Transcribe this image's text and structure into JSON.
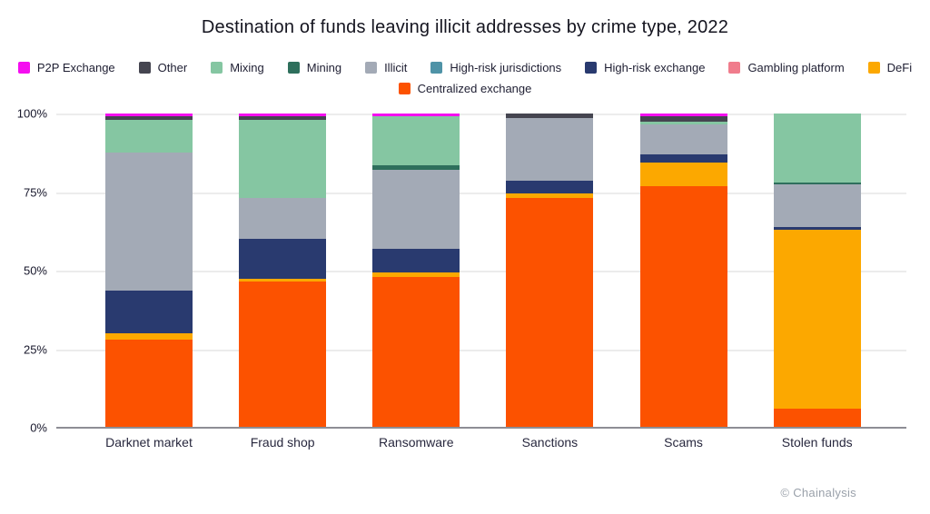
{
  "title": "Destination of funds leaving illicit addresses by crime type, 2022",
  "watermark": "© Chainalysis",
  "chart_data": {
    "type": "bar",
    "stacked": true,
    "units": "percent",
    "title": "Destination of funds leaving illicit addresses by crime type, 2022",
    "xlabel": "",
    "ylabel": "",
    "ylim": [
      0,
      100
    ],
    "yticks": [
      0,
      25,
      50,
      75,
      100
    ],
    "ytick_suffix": "%",
    "grid": true,
    "legend_position": "top",
    "legend_wrap": 9,
    "categories": [
      "Darknet market",
      "Fraud shop",
      "Ransomware",
      "Sanctions",
      "Scams",
      "Stolen funds"
    ],
    "series": [
      {
        "name": "P2P Exchange",
        "color": "#f50ef0",
        "values": [
          1,
          1,
          1,
          0,
          1,
          0
        ]
      },
      {
        "name": "Other",
        "color": "#454550",
        "values": [
          1,
          1,
          0,
          1.5,
          1.5,
          0
        ]
      },
      {
        "name": "Mixing",
        "color": "#85c6a2",
        "values": [
          10.5,
          25,
          15.5,
          0,
          1,
          22
        ]
      },
      {
        "name": "Mining",
        "color": "#2e6f5c",
        "values": [
          0,
          0,
          1.5,
          0,
          0,
          0.5
        ]
      },
      {
        "name": "Illicit",
        "color": "#a3aab6",
        "values": [
          44,
          13,
          25,
          20,
          9.5,
          13.5
        ]
      },
      {
        "name": "High-risk jurisdictions",
        "color": "#4f93a7",
        "values": [
          0,
          0,
          0,
          0,
          0,
          0
        ]
      },
      {
        "name": "High-risk exchange",
        "color": "#293a6f",
        "values": [
          13.5,
          12.5,
          7.5,
          4,
          2.5,
          1
        ]
      },
      {
        "name": "Gambling platform",
        "color": "#f07c8c",
        "values": [
          0,
          0,
          0,
          0,
          0,
          0
        ]
      },
      {
        "name": "DeFi",
        "color": "#fca800",
        "values": [
          2,
          1,
          1.5,
          1.5,
          7.5,
          57
        ]
      },
      {
        "name": "Centralized exchange",
        "color": "#fc5200",
        "values": [
          28,
          46.5,
          48,
          73,
          77,
          6
        ]
      }
    ]
  }
}
